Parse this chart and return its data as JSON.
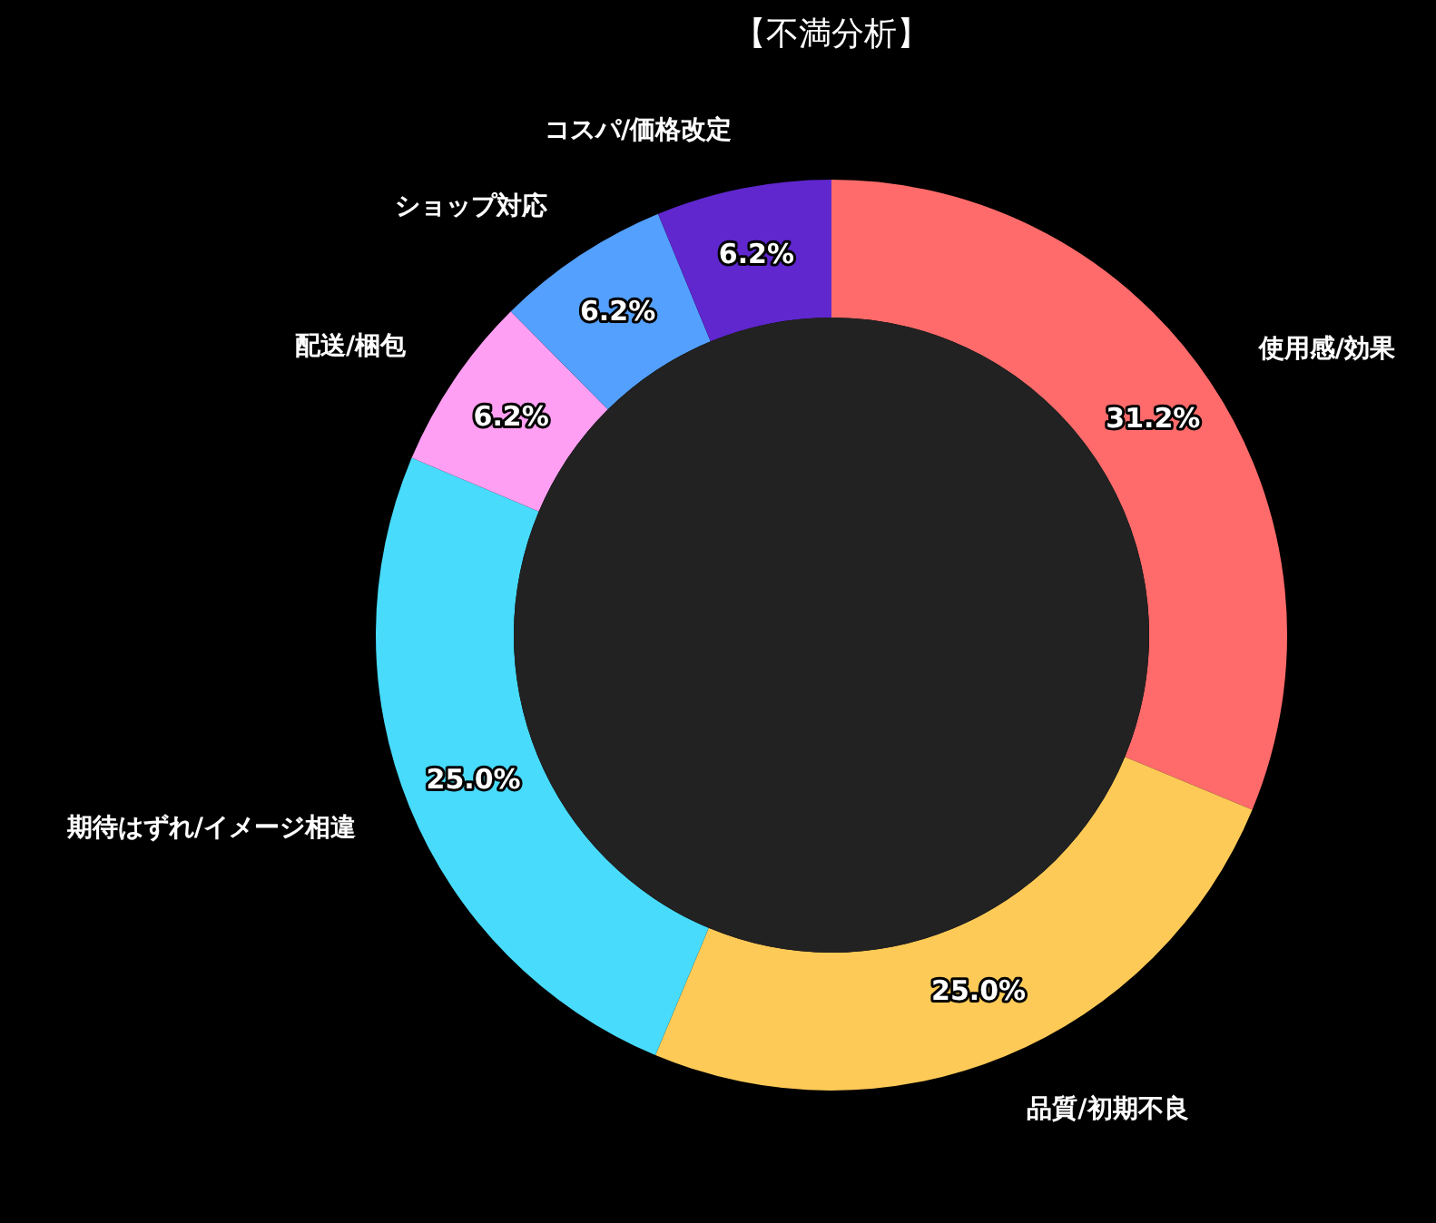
{
  "chart_data": {
    "type": "donut",
    "title": "【不満分析】",
    "categories": [
      "使用感/効果",
      "品質/初期不良",
      "期待はずれ/イメージ相違",
      "配送/梱包",
      "ショップ対応",
      "コスパ/価格改定"
    ],
    "values": [
      31.2,
      25.0,
      25.0,
      6.2,
      6.2,
      6.2
    ],
    "colors": [
      "#ff6b6b",
      "#feca57",
      "#48dbfb",
      "#ff9ff3",
      "#54a0ff",
      "#5f27cd"
    ],
    "value_labels": [
      "31.2%",
      "25.0%",
      "25.0%",
      "6.2%",
      "6.2%",
      "6.2%"
    ],
    "legend": false
  }
}
